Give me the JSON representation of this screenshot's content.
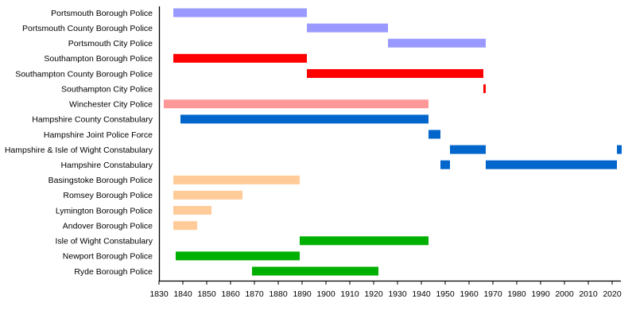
{
  "chart_data": {
    "type": "timeline",
    "title": "",
    "xlabel": "",
    "ylabel": "",
    "xlim": [
      1830,
      2024
    ],
    "x_ticks": [
      1830,
      1840,
      1850,
      1860,
      1870,
      1880,
      1890,
      1900,
      1910,
      1920,
      1930,
      1940,
      1950,
      1960,
      1970,
      1980,
      1990,
      2000,
      2010,
      2020
    ],
    "grid": false,
    "legend": "none",
    "rows": [
      {
        "label": "Portsmouth Borough Police",
        "color": "#9999ff",
        "spans": [
          [
            1836,
            1892
          ]
        ]
      },
      {
        "label": "Portsmouth County Borough Police",
        "color": "#9999ff",
        "spans": [
          [
            1892,
            1926
          ]
        ]
      },
      {
        "label": "Portsmouth City Police",
        "color": "#9999ff",
        "spans": [
          [
            1926,
            1967
          ]
        ]
      },
      {
        "label": "Southampton Borough Police",
        "color": "#ff0000",
        "spans": [
          [
            1836,
            1892
          ]
        ]
      },
      {
        "label": "Southampton County Borough Police",
        "color": "#ff0000",
        "spans": [
          [
            1892,
            1966
          ]
        ]
      },
      {
        "label": "Southampton City Police",
        "color": "#ff0000",
        "spans": [
          [
            1966,
            1967
          ]
        ]
      },
      {
        "label": "Winchester City Police",
        "color": "#ff9999",
        "spans": [
          [
            1832,
            1943
          ]
        ]
      },
      {
        "label": "Hampshire County Constabulary",
        "color": "#0066cc",
        "spans": [
          [
            1839,
            1943
          ]
        ]
      },
      {
        "label": "Hampshire Joint Police Force",
        "color": "#0066cc",
        "spans": [
          [
            1943,
            1948
          ]
        ]
      },
      {
        "label": "Hampshire & Isle of Wight Constabulary",
        "color": "#0066cc",
        "spans": [
          [
            1952,
            1967
          ],
          [
            2022,
            2024
          ]
        ]
      },
      {
        "label": "Hampshire Constabulary",
        "color": "#0066cc",
        "spans": [
          [
            1948,
            1952
          ],
          [
            1967,
            2022
          ]
        ]
      },
      {
        "label": "Basingstoke Borough Police",
        "color": "#ffcc99",
        "spans": [
          [
            1836,
            1889
          ]
        ]
      },
      {
        "label": "Romsey Borough Police",
        "color": "#ffcc99",
        "spans": [
          [
            1836,
            1865
          ]
        ]
      },
      {
        "label": "Lymington Borough Police",
        "color": "#ffcc99",
        "spans": [
          [
            1836,
            1852
          ]
        ]
      },
      {
        "label": "Andover Borough Police",
        "color": "#ffcc99",
        "spans": [
          [
            1836,
            1846
          ]
        ]
      },
      {
        "label": "Isle of Wight Constabulary",
        "color": "#00b000",
        "spans": [
          [
            1889,
            1943
          ]
        ]
      },
      {
        "label": "Newport Borough Police",
        "color": "#00b000",
        "spans": [
          [
            1837,
            1889
          ]
        ]
      },
      {
        "label": "Ryde Borough Police",
        "color": "#00b000",
        "spans": [
          [
            1869,
            1922
          ]
        ]
      }
    ]
  }
}
